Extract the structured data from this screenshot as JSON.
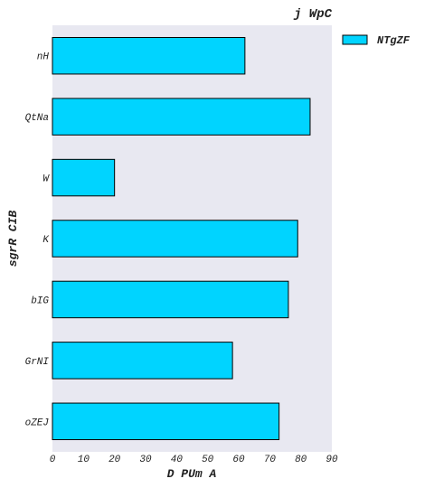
{
  "chart_data": {
    "type": "bar",
    "orientation": "horizontal",
    "title": "j WpC",
    "xlabel": "D  PUm  A",
    "ylabel": "sgrR CIB",
    "categories": [
      "nH",
      "QtNa",
      "W",
      "K",
      "bIG",
      "GrNI",
      "oZEJ"
    ],
    "series": [
      {
        "name": "NTgZF",
        "values": [
          62,
          83,
          20,
          79,
          76,
          58,
          73
        ]
      }
    ],
    "xlim": [
      0,
      90
    ],
    "xticks": [
      0,
      10,
      20,
      30,
      40,
      50,
      60,
      70,
      80,
      90
    ],
    "grid": false,
    "legend_position": "outside-top-right",
    "colors": {
      "bar": "#00d4ff",
      "bar_edge": "#000000",
      "plot_background": "#e8e8f1"
    }
  }
}
